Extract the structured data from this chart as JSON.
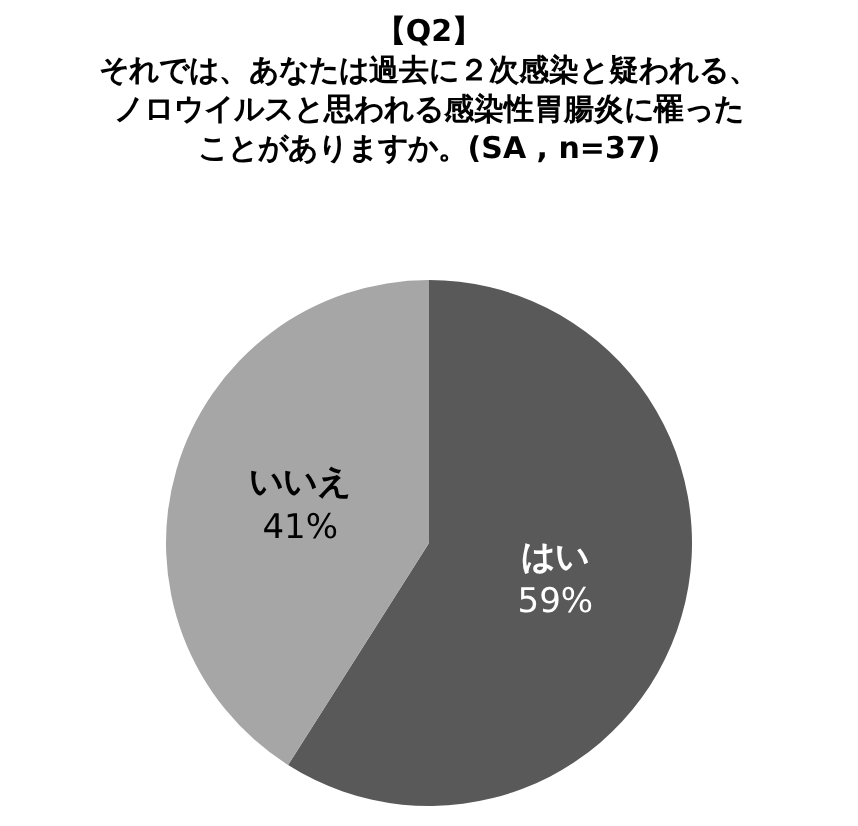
{
  "chart_data": {
    "type": "pie",
    "title": "【Q2】",
    "subtitle": "それでは、あなたは過去に２次感染と疑われる、ノロウイルスと思われる感染性胃腸炎に罹ったことがありますか。(SA , n=37)",
    "categories": [
      "はい",
      "いいえ"
    ],
    "values": [
      59,
      41
    ],
    "value_labels": [
      "59%",
      "41%"
    ],
    "colors": [
      "#595959",
      "#a6a6a6"
    ],
    "legend": false
  }
}
